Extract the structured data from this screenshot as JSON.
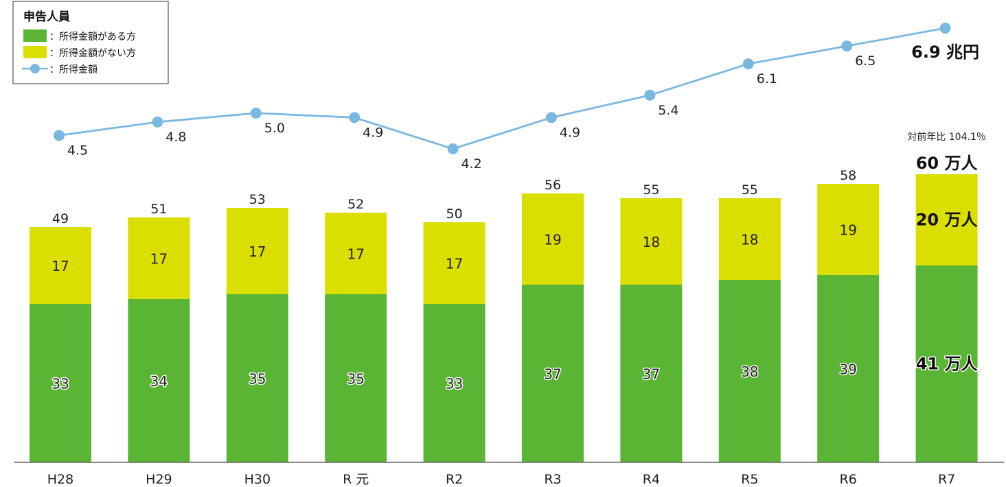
{
  "chart_data": {
    "type": "bar",
    "stacked": true,
    "categories": [
      "H28",
      "H29",
      "H30",
      "R元",
      "R2",
      "R3",
      "R4",
      "R5",
      "R6",
      "R7"
    ],
    "category_labels": [
      "H28",
      "H29",
      "H30",
      "R 元",
      "R2",
      "R3",
      "R4",
      "R5",
      "R6",
      "R7"
    ],
    "series": [
      {
        "name": "：所得金額がある方",
        "values": [
          33,
          34,
          35,
          35,
          33,
          37,
          37,
          38,
          39,
          41
        ],
        "color": "#5ab534"
      },
      {
        "name": "：所得金額がない方",
        "values": [
          17,
          17,
          17,
          17,
          17,
          19,
          18,
          18,
          19,
          20
        ],
        "color": "#dbdf00"
      }
    ],
    "totals": [
      49,
      51,
      53,
      52,
      50,
      56,
      55,
      55,
      58,
      60
    ],
    "line": {
      "name": "：所得金額",
      "values": [
        4.5,
        4.8,
        5.0,
        4.9,
        4.2,
        4.9,
        5.4,
        6.1,
        6.5,
        6.9
      ],
      "labels": [
        "4.5",
        "4.8",
        "5.0",
        "4.9",
        "4.2",
        "4.9",
        "5.4",
        "6.1",
        "6.5",
        "6.9 兆円"
      ],
      "color": "#7ab8e1"
    },
    "last_labels": {
      "total": "60 万人",
      "yellow": "20 万人",
      "green": "41 万人",
      "yoy": "対前年比 104.1％"
    },
    "legend_title": "申告人員",
    "legend_position": "top-left",
    "ylim": [
      0,
      60
    ],
    "grid": false
  }
}
